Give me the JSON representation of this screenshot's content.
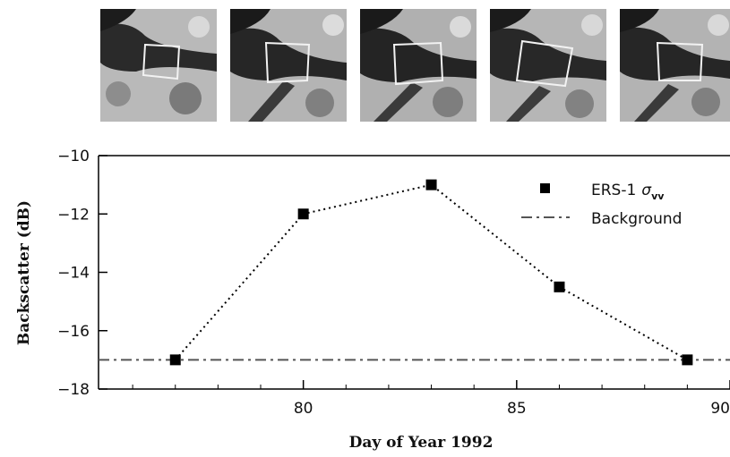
{
  "thumbnails": [
    {
      "icon": "radar-image-day-77-icon"
    },
    {
      "icon": "radar-image-day-80-icon"
    },
    {
      "icon": "radar-image-day-83-icon"
    },
    {
      "icon": "radar-image-day-86-icon"
    },
    {
      "icon": "radar-image-day-89-icon"
    }
  ],
  "chart_data": {
    "type": "scatter",
    "title": "",
    "xlabel": "Day of Year 1992",
    "ylabel": "Backscatter (dB)",
    "xlim": [
      75.2,
      90
    ],
    "ylim": [
      -18,
      -10
    ],
    "xticks": [
      80,
      85,
      90
    ],
    "yticks": [
      -18,
      -16,
      -14,
      -12,
      -10
    ],
    "grid": false,
    "legend_position": "top-right",
    "series": [
      {
        "name": "ERS-1 σvv",
        "legend_main": "ERS-1",
        "legend_symbol": "σ",
        "legend_sub": "vv",
        "marker": "square",
        "line": "dotted",
        "color": "#000000",
        "x": [
          77,
          80,
          83,
          86,
          89
        ],
        "y": [
          -17,
          -12,
          -11,
          -14.5,
          -17
        ]
      },
      {
        "name": "Background",
        "legend_main": "Background",
        "line": "dash-dot",
        "color": "#555555",
        "y": -17
      }
    ]
  }
}
